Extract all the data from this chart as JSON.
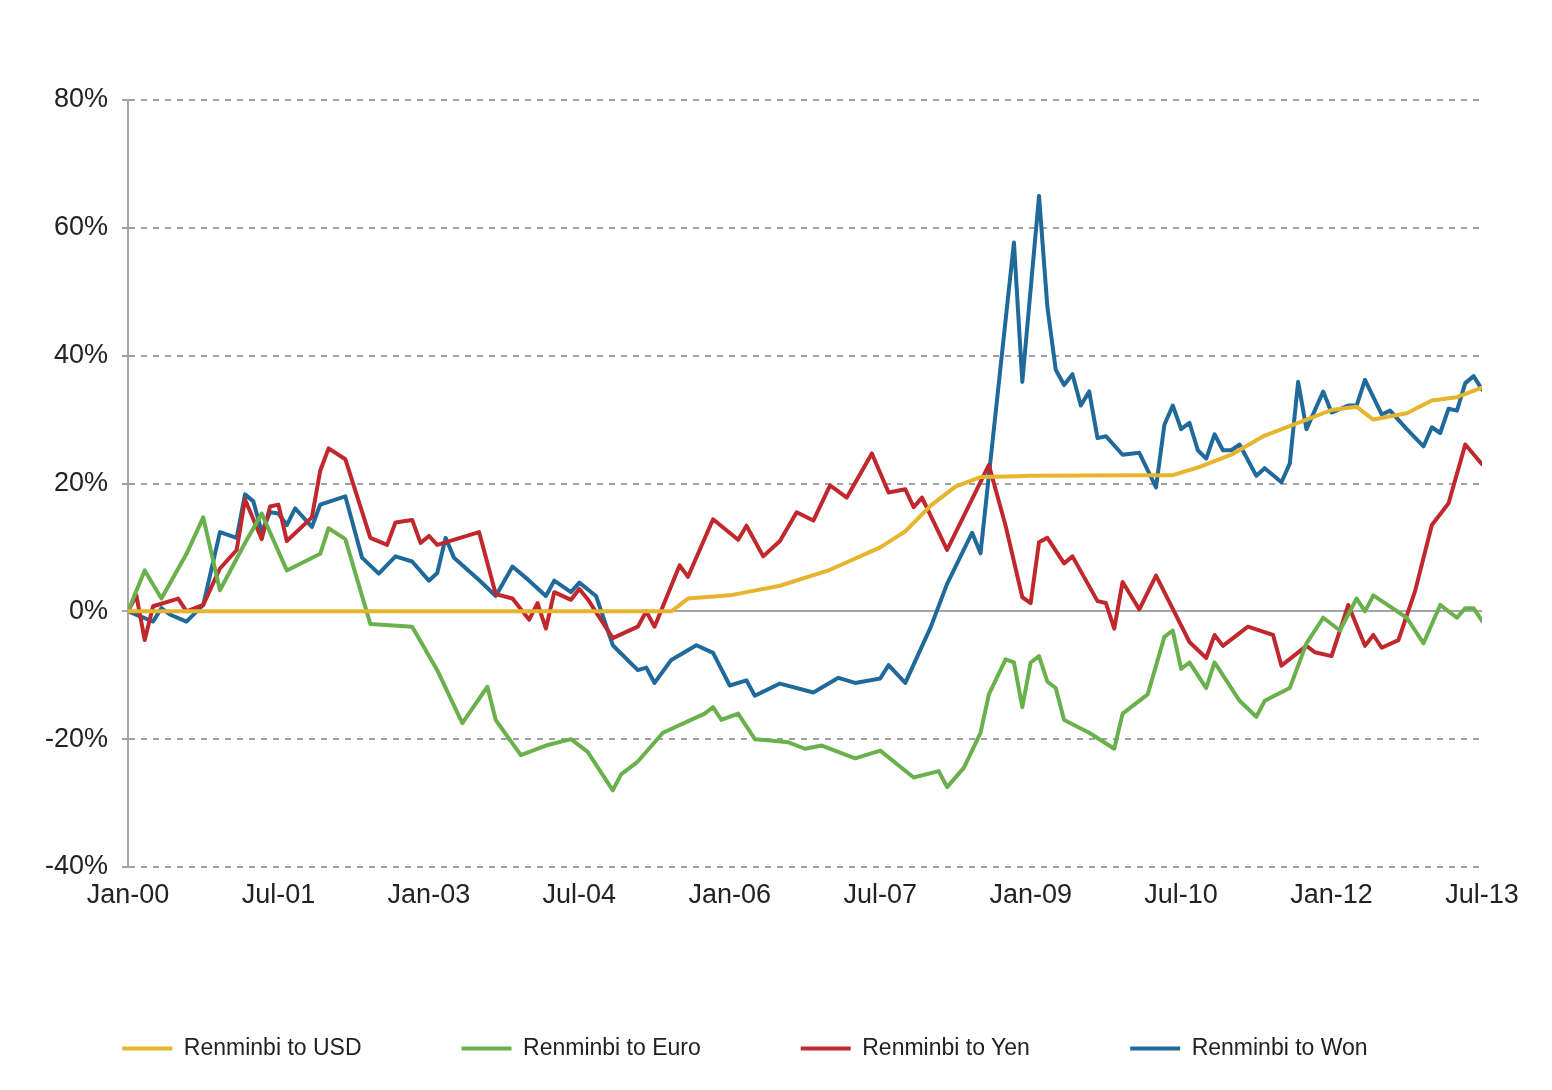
{
  "chart_data": {
    "type": "line",
    "xlim": [
      "2000-01",
      "2013-07"
    ],
    "xticks": [
      {
        "value": "2000-01",
        "label": "Jan-00"
      },
      {
        "value": "2001-07",
        "label": "Jul-01"
      },
      {
        "value": "2003-01",
        "label": "Jan-03"
      },
      {
        "value": "2004-07",
        "label": "Jul-04"
      },
      {
        "value": "2006-01",
        "label": "Jan-06"
      },
      {
        "value": "2007-07",
        "label": "Jul-07"
      },
      {
        "value": "2009-01",
        "label": "Jan-09"
      },
      {
        "value": "2010-07",
        "label": "Jul-10"
      },
      {
        "value": "2012-01",
        "label": "Jan-12"
      },
      {
        "value": "2013-07",
        "label": "Jul-13"
      }
    ],
    "ylim": [
      -40,
      80
    ],
    "yticks": [
      {
        "value": -40,
        "label": "-40%"
      },
      {
        "value": -20,
        "label": "-20%"
      },
      {
        "value": 0,
        "label": "0%"
      },
      {
        "value": 20,
        "label": "20%"
      },
      {
        "value": 40,
        "label": "40%"
      },
      {
        "value": 60,
        "label": "60%"
      },
      {
        "value": 80,
        "label": "80%"
      }
    ],
    "grid": "y",
    "legend": "bottom",
    "marker": "none",
    "line_style": "solid",
    "series": [
      {
        "name": "Renminbi to USD",
        "color": "#e6b42d",
        "x": [
          "2000-01",
          "2005-06",
          "2005-08",
          "2006-01",
          "2006-07",
          "2007-01",
          "2007-07",
          "2007-10",
          "2008-01",
          "2008-04",
          "2008-07",
          "2009-01",
          "2010-01",
          "2010-06",
          "2010-09",
          "2011-01",
          "2011-05",
          "2011-09",
          "2012-01",
          "2012-04",
          "2012-06",
          "2012-10",
          "2013-01",
          "2013-04",
          "2013-07"
        ],
        "values": [
          0,
          0,
          2,
          2.5,
          4,
          6.5,
          10,
          12.5,
          16.5,
          19.5,
          21,
          21.2,
          21.3,
          21.3,
          22.5,
          24.5,
          27.5,
          29.5,
          31.5,
          32,
          30,
          31,
          33,
          33.5,
          35
        ]
      },
      {
        "name": "Renminbi to Euro",
        "color": "#6ab04c",
        "x": [
          "2000-01",
          "2000-03",
          "2000-05",
          "2000-08",
          "2000-10",
          "2000-12",
          "2001-03",
          "2001-05",
          "2001-08",
          "2001-12",
          "2002-01",
          "2002-03",
          "2002-06",
          "2002-11",
          "2003-02",
          "2003-05",
          "2003-08",
          "2003-09",
          "2003-12",
          "2004-03",
          "2004-06",
          "2004-08",
          "2004-11",
          "2004-12",
          "2005-02",
          "2005-05",
          "2005-10",
          "2005-11",
          "2005-12",
          "2006-02",
          "2006-04",
          "2006-08",
          "2006-10",
          "2006-12",
          "2007-04",
          "2007-07",
          "2007-11",
          "2008-02",
          "2008-03",
          "2008-05",
          "2008-07",
          "2008-08",
          "2008-10",
          "2008-11",
          "2008-12",
          "2009-01",
          "2009-02",
          "2009-03",
          "2009-04",
          "2009-05",
          "2009-08",
          "2009-11",
          "2009-12",
          "2010-03",
          "2010-05",
          "2010-06",
          "2010-07",
          "2010-08",
          "2010-10",
          "2010-11",
          "2011-02",
          "2011-04",
          "2011-05",
          "2011-08",
          "2011-10",
          "2011-12",
          "2012-02",
          "2012-04",
          "2012-05",
          "2012-06",
          "2012-10",
          "2012-12",
          "2013-02",
          "2013-04",
          "2013-05",
          "2013-06",
          "2013-07"
        ],
        "values": [
          0,
          6.4,
          2,
          9,
          14.7,
          3.3,
          10.7,
          15.3,
          6.4,
          9,
          13,
          11.3,
          -2,
          -2.4,
          -9.2,
          -17.5,
          -11.8,
          -17,
          -22.5,
          -21,
          -20,
          -22,
          -28,
          -25.5,
          -23.5,
          -19,
          -16,
          -15,
          -17,
          -16,
          -20,
          -20.5,
          -21.5,
          -21,
          -23,
          -21.8,
          -26,
          -25,
          -27.5,
          -24.5,
          -19,
          -13,
          -7.5,
          -8,
          -15,
          -8,
          -7,
          -11,
          -12,
          -17,
          -19,
          -21.5,
          -16,
          -13,
          -4,
          -3,
          -9,
          -8,
          -12,
          -8,
          -14,
          -16.5,
          -14,
          -12,
          -5,
          -1,
          -3,
          2,
          0,
          2.5,
          -1,
          -5,
          1,
          -1,
          0.5,
          0.5,
          -1.5
        ]
      },
      {
        "name": "Renminbi to Yen",
        "color": "#c0282d",
        "x": [
          "2000-01",
          "2000-02",
          "2000-03",
          "2000-04",
          "2000-07",
          "2000-08",
          "2000-10",
          "2000-12",
          "2001-02",
          "2001-03",
          "2001-05",
          "2001-06",
          "2001-07",
          "2001-08",
          "2001-11",
          "2001-12",
          "2002-01",
          "2002-03",
          "2002-06",
          "2002-08",
          "2002-09",
          "2002-11",
          "2002-12",
          "2003-01",
          "2003-02",
          "2003-07",
          "2003-09",
          "2003-11",
          "2004-01",
          "2004-02",
          "2004-03",
          "2004-04",
          "2004-06",
          "2004-07",
          "2004-08",
          "2004-11",
          "2005-02",
          "2005-03",
          "2005-04",
          "2005-07",
          "2005-08",
          "2005-11",
          "2006-02",
          "2006-03",
          "2006-05",
          "2006-07",
          "2006-09",
          "2006-11",
          "2007-01",
          "2007-03",
          "2007-06",
          "2007-08",
          "2007-10",
          "2007-11",
          "2007-12",
          "2008-03",
          "2008-08",
          "2008-10",
          "2008-12",
          "2009-01",
          "2009-02",
          "2009-03",
          "2009-05",
          "2009-06",
          "2009-09",
          "2009-10",
          "2009-11",
          "2009-12",
          "2010-02",
          "2010-04",
          "2010-08",
          "2010-10",
          "2010-11",
          "2010-12",
          "2011-03",
          "2011-06",
          "2011-07",
          "2011-10",
          "2011-11",
          "2012-01",
          "2012-03",
          "2012-05",
          "2012-06",
          "2012-07",
          "2012-09",
          "2012-11",
          "2013-01",
          "2013-03",
          "2013-05",
          "2013-07"
        ],
        "values": [
          0,
          2.5,
          -4.5,
          0.8,
          2,
          0,
          1,
          6.7,
          9.6,
          17.5,
          11.3,
          16.4,
          16.7,
          11,
          14.7,
          22,
          25.5,
          23.8,
          11.5,
          10.4,
          13.9,
          14.3,
          10.7,
          11.8,
          10.4,
          12.4,
          2.7,
          2,
          -1.3,
          1.3,
          -2.7,
          3,
          1.8,
          3.5,
          1.9,
          -4.2,
          -2.4,
          0,
          -2.4,
          7.2,
          5.4,
          14.4,
          11.2,
          13.4,
          8.6,
          11,
          15.5,
          14.2,
          19.7,
          17.8,
          24.7,
          18.6,
          19.1,
          16.3,
          17.8,
          9.6,
          22.9,
          13.4,
          2.2,
          1.3,
          10.8,
          11.5,
          7.5,
          8.6,
          1.6,
          1.3,
          -2.7,
          4.6,
          0.3,
          5.6,
          -4.8,
          -7.3,
          -3.7,
          -5.4,
          -2.4,
          -3.7,
          -8.5,
          -5.4,
          -6.4,
          -7,
          1,
          -5.4,
          -3.7,
          -5.7,
          -4.5,
          3.2,
          13.5,
          16.9,
          26.1,
          23
        ]
      },
      {
        "name": "Renminbi to Won",
        "color": "#1f6a9a",
        "x": [
          "2000-01",
          "2000-04",
          "2000-05",
          "2000-06",
          "2000-08",
          "2000-10",
          "2000-12",
          "2001-02",
          "2001-03",
          "2001-04",
          "2001-05",
          "2001-06",
          "2001-07",
          "2001-08",
          "2001-09",
          "2001-11",
          "2001-12",
          "2002-03",
          "2002-05",
          "2002-07",
          "2002-09",
          "2002-11",
          "2003-01",
          "2003-02",
          "2003-03",
          "2003-04",
          "2003-07",
          "2003-09",
          "2003-11",
          "2004-01",
          "2004-03",
          "2004-04",
          "2004-06",
          "2004-07",
          "2004-09",
          "2004-11",
          "2005-02",
          "2005-03",
          "2005-04",
          "2005-06",
          "2005-09",
          "2005-11",
          "2006-01",
          "2006-03",
          "2006-04",
          "2006-07",
          "2006-11",
          "2007-02",
          "2007-04",
          "2007-07",
          "2007-08",
          "2007-10",
          "2008-01",
          "2008-03",
          "2008-06",
          "2008-07",
          "2008-11",
          "2008-12",
          "2009-02",
          "2009-03",
          "2009-04",
          "2009-05",
          "2009-06",
          "2009-07",
          "2009-08",
          "2009-09",
          "2009-10",
          "2009-12",
          "2010-02",
          "2010-04",
          "2010-05",
          "2010-06",
          "2010-07",
          "2010-08",
          "2010-09",
          "2010-10",
          "2010-11",
          "2010-12",
          "2011-01",
          "2011-02",
          "2011-04",
          "2011-05",
          "2011-07",
          "2011-08",
          "2011-09",
          "2011-10",
          "2011-12",
          "2012-01",
          "2012-03",
          "2012-04",
          "2012-05",
          "2012-07",
          "2012-08",
          "2012-10",
          "2012-12",
          "2013-01",
          "2013-02",
          "2013-03",
          "2013-04",
          "2013-05",
          "2013-06",
          "2013-07"
        ],
        "values": [
          0,
          -1.6,
          0.5,
          -0.5,
          -1.6,
          1,
          12.4,
          11.5,
          18.3,
          17.2,
          12.4,
          15.5,
          15.3,
          13.5,
          16.1,
          13.2,
          16.7,
          18,
          8.4,
          5.9,
          8.6,
          7.8,
          4.8,
          6,
          11.5,
          8.4,
          4.9,
          2.4,
          7,
          4.8,
          2.4,
          4.8,
          3,
          4.5,
          2.4,
          -5.3,
          -9.2,
          -8.8,
          -11.2,
          -7.6,
          -5.3,
          -6.5,
          -11.6,
          -10.8,
          -13.2,
          -11.3,
          -12.7,
          -10.4,
          -11.2,
          -10.5,
          -8.4,
          -11.2,
          -2.6,
          4.3,
          12.3,
          9.1,
          57.7,
          35.9,
          65,
          47.6,
          37.8,
          35.4,
          37.1,
          32.2,
          34.4,
          27.1,
          27.4,
          24.5,
          24.8,
          19.4,
          29.2,
          32.2,
          28.5,
          29.5,
          25.2,
          23.9,
          27.7,
          25.2,
          25.2,
          26.1,
          21.2,
          22.4,
          20.2,
          23.1,
          35.9,
          28.5,
          34.4,
          31.1,
          32.2,
          32.2,
          36.2,
          30.8,
          31.4,
          28.5,
          25.8,
          28.8,
          27.9,
          31.7,
          31.4,
          35.7,
          36.8,
          34.7
        ]
      }
    ]
  }
}
